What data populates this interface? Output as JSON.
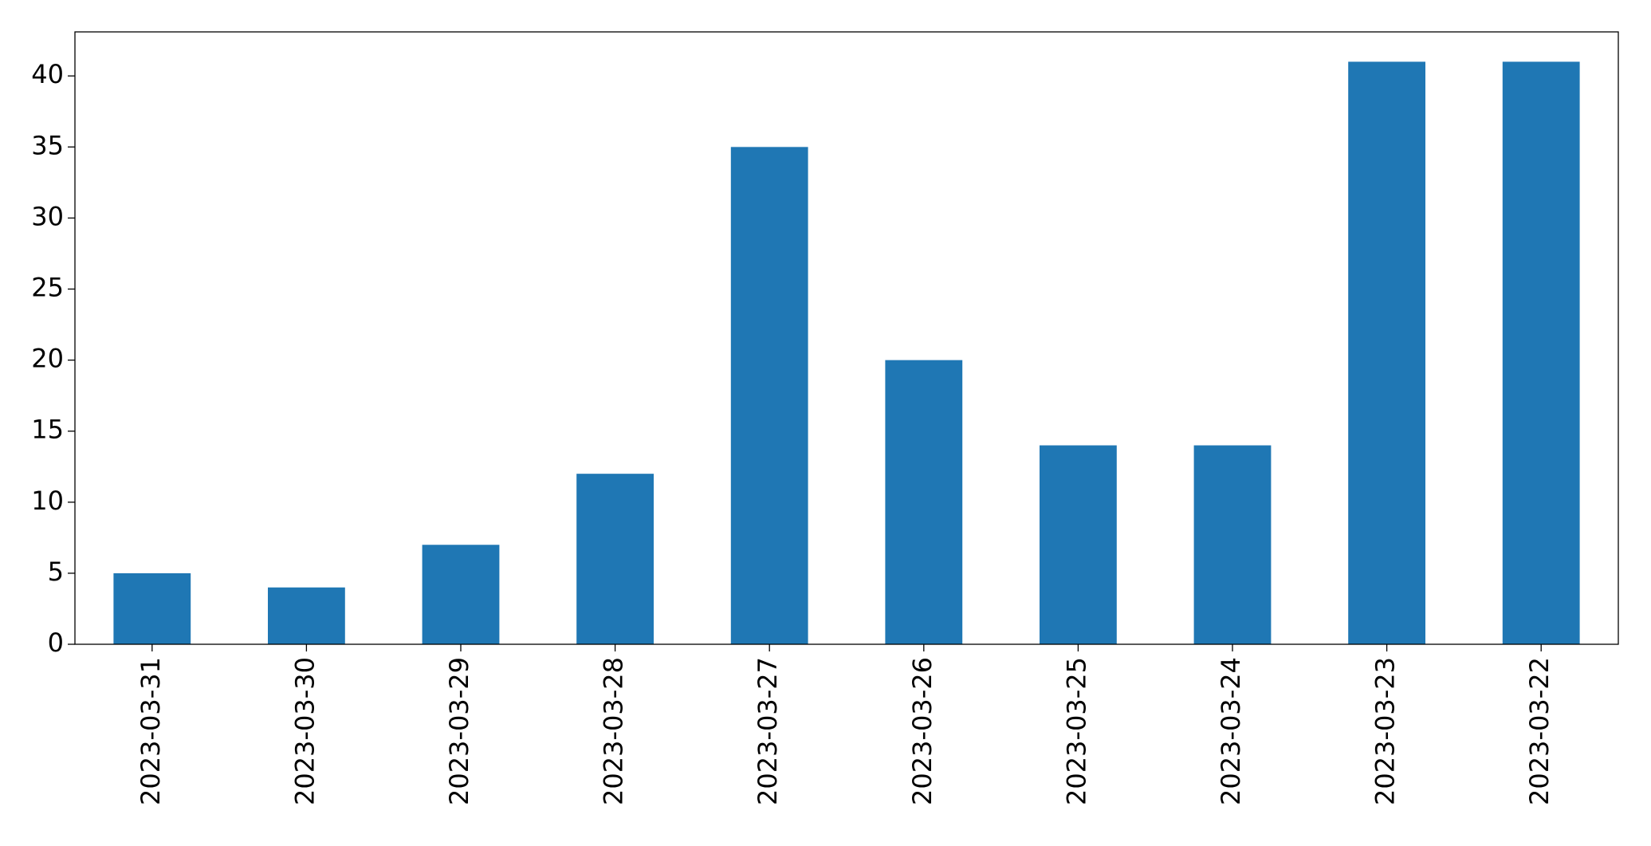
{
  "chart_data": {
    "type": "bar",
    "categories": [
      "2023-03-31",
      "2023-03-30",
      "2023-03-29",
      "2023-03-28",
      "2023-03-27",
      "2023-03-26",
      "2023-03-25",
      "2023-03-24",
      "2023-03-23",
      "2023-03-22"
    ],
    "values": [
      5,
      4,
      7,
      12,
      35,
      20,
      14,
      14,
      41,
      41
    ],
    "color": "#1f77b4",
    "ylim": [
      0,
      43.1
    ],
    "yticks": [
      0,
      5,
      10,
      15,
      20,
      25,
      30,
      35,
      40
    ],
    "grid": false
  }
}
